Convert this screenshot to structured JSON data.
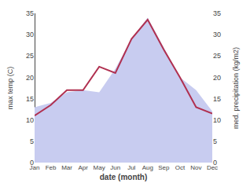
{
  "chart_data": {
    "type": "line",
    "categories": [
      "Jan",
      "Feb",
      "Mar",
      "Apr",
      "May",
      "Jun",
      "Jul",
      "Aug",
      "Sep",
      "Oct",
      "Nov",
      "Dec"
    ],
    "series": [
      {
        "type": "area",
        "axis": "y2",
        "color": "#c8ccf0",
        "values": [
          13,
          14,
          16.5,
          17,
          16.5,
          22,
          29,
          34,
          27,
          20,
          17,
          12
        ]
      },
      {
        "type": "line",
        "color": "#b03050",
        "values": [
          11,
          13.5,
          17,
          17,
          22.5,
          21,
          29,
          33.5,
          26.5,
          20,
          13,
          11.5
        ]
      }
    ],
    "xlabel": "date (month)",
    "ylabel": "max temp (C)",
    "y2label": "med. precipitation (kg/m2)",
    "ylim": [
      0,
      35
    ],
    "yticks": [
      0,
      5,
      10,
      15,
      20,
      25,
      30,
      35
    ],
    "y2lim": [
      0,
      35
    ],
    "y2ticks": [
      0,
      5,
      10,
      15,
      20,
      25,
      30,
      35
    ],
    "grid": false
  }
}
